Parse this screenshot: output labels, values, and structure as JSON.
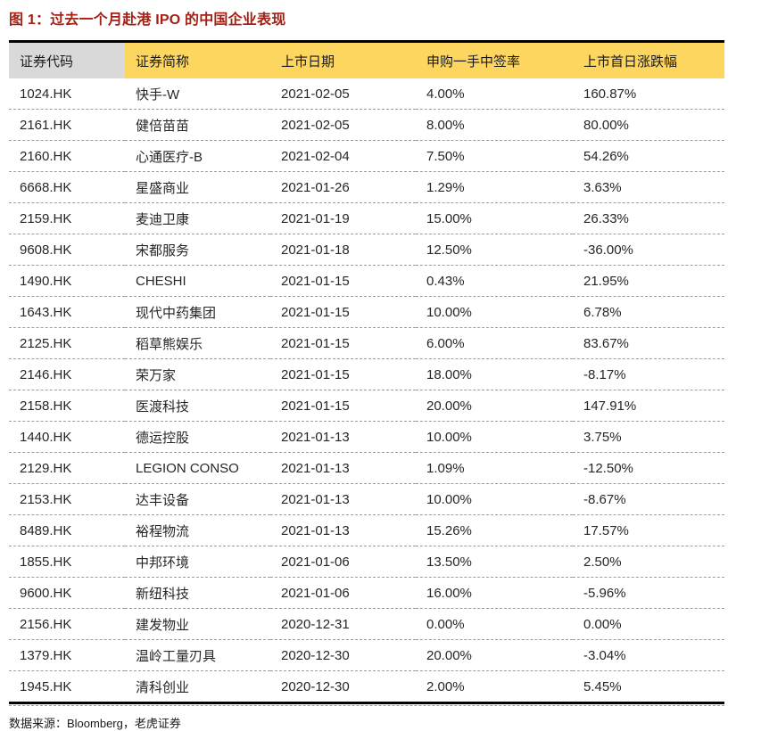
{
  "title": "图 1：过去一个月赴港 IPO 的中国企业表现",
  "colors": {
    "title_red": "#A32014",
    "header_gray": "#D9D9D9",
    "header_yellow": "#FDD65F",
    "table_border": "#000000",
    "row_divider": "#9c9c9c"
  },
  "table": {
    "columns": [
      "证券代码",
      "证券简称",
      "上市日期",
      "申购一手中签率",
      "上市首日涨跌幅"
    ],
    "rows": [
      {
        "code": "1024.HK",
        "name": "快手-W",
        "date": "2021-02-05",
        "lottery": "4.00%",
        "change": "160.87%"
      },
      {
        "code": "2161.HK",
        "name": "健倍苗苗",
        "date": "2021-02-05",
        "lottery": "8.00%",
        "change": "80.00%"
      },
      {
        "code": "2160.HK",
        "name": "心通医疗-B",
        "date": "2021-02-04",
        "lottery": "7.50%",
        "change": "54.26%"
      },
      {
        "code": "6668.HK",
        "name": "星盛商业",
        "date": "2021-01-26",
        "lottery": "1.29%",
        "change": "3.63%"
      },
      {
        "code": "2159.HK",
        "name": "麦迪卫康",
        "date": "2021-01-19",
        "lottery": "15.00%",
        "change": "26.33%"
      },
      {
        "code": "9608.HK",
        "name": "宋都服务",
        "date": "2021-01-18",
        "lottery": "12.50%",
        "change": "-36.00%"
      },
      {
        "code": "1490.HK",
        "name": "CHESHI",
        "date": "2021-01-15",
        "lottery": "0.43%",
        "change": "21.95%"
      },
      {
        "code": "1643.HK",
        "name": "现代中药集团",
        "date": "2021-01-15",
        "lottery": "10.00%",
        "change": "6.78%"
      },
      {
        "code": "2125.HK",
        "name": "稻草熊娱乐",
        "date": "2021-01-15",
        "lottery": "6.00%",
        "change": "83.67%"
      },
      {
        "code": "2146.HK",
        "name": "荣万家",
        "date": "2021-01-15",
        "lottery": "18.00%",
        "change": "-8.17%"
      },
      {
        "code": "2158.HK",
        "name": "医渡科技",
        "date": "2021-01-15",
        "lottery": "20.00%",
        "change": "147.91%"
      },
      {
        "code": "1440.HK",
        "name": "德运控股",
        "date": "2021-01-13",
        "lottery": "10.00%",
        "change": "3.75%"
      },
      {
        "code": "2129.HK",
        "name": "LEGION CONSO",
        "date": "2021-01-13",
        "lottery": "1.09%",
        "change": "-12.50%"
      },
      {
        "code": "2153.HK",
        "name": "达丰设备",
        "date": "2021-01-13",
        "lottery": "10.00%",
        "change": "-8.67%"
      },
      {
        "code": "8489.HK",
        "name": "裕程物流",
        "date": "2021-01-13",
        "lottery": "15.26%",
        "change": "17.57%"
      },
      {
        "code": "1855.HK",
        "name": "中邦环境",
        "date": "2021-01-06",
        "lottery": "13.50%",
        "change": "2.50%"
      },
      {
        "code": "9600.HK",
        "name": "新纽科技",
        "date": "2021-01-06",
        "lottery": "16.00%",
        "change": "-5.96%"
      },
      {
        "code": "2156.HK",
        "name": "建发物业",
        "date": "2020-12-31",
        "lottery": "0.00%",
        "change": "0.00%"
      },
      {
        "code": "1379.HK",
        "name": "温岭工量刃具",
        "date": "2020-12-30",
        "lottery": "20.00%",
        "change": "-3.04%"
      },
      {
        "code": "1945.HK",
        "name": "清科创业",
        "date": "2020-12-30",
        "lottery": "2.00%",
        "change": "5.45%"
      }
    ]
  },
  "footer": {
    "source": "数据来源：Bloomberg，老虎证券"
  }
}
